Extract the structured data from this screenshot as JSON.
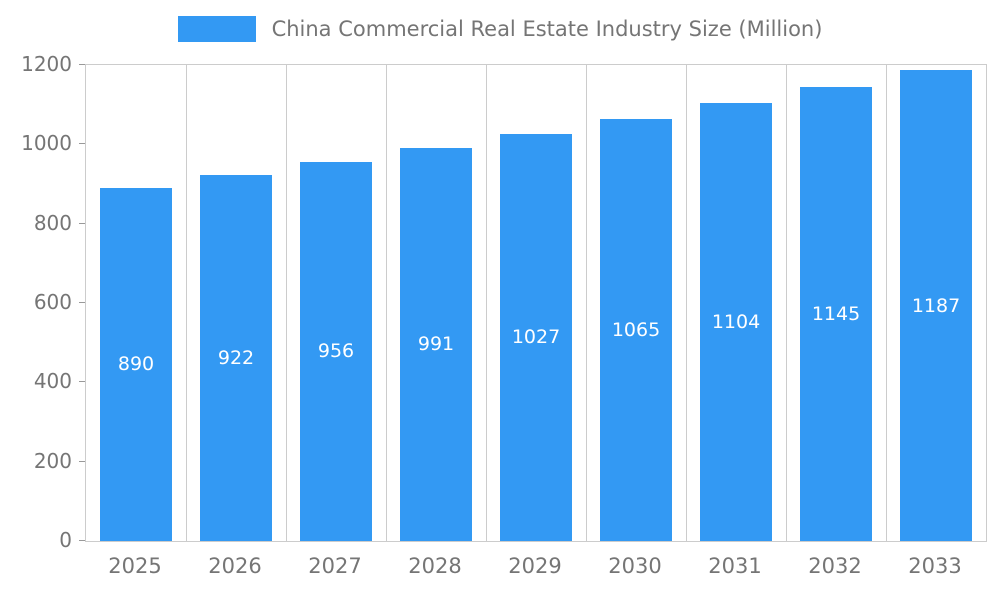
{
  "legend": {
    "title": "China Commercial Real Estate Industry Size (Million)"
  },
  "colors": {
    "bar": "#3399f3",
    "grid": "#cccccc",
    "axis_text": "#757575",
    "bar_label_text": "#ffffff"
  },
  "chart_data": {
    "type": "bar",
    "title": "China Commercial Real Estate Industry Size (Million)",
    "categories": [
      "2025",
      "2026",
      "2027",
      "2028",
      "2029",
      "2030",
      "2031",
      "2032",
      "2033"
    ],
    "values": [
      890,
      922,
      956,
      991,
      1027,
      1065,
      1104,
      1145,
      1187
    ],
    "xlabel": "",
    "ylabel": "",
    "ylim": [
      0,
      1200
    ],
    "yticks": [
      0,
      200,
      400,
      600,
      800,
      1000,
      1200
    ],
    "grid": "vertical-only",
    "legend_position": "top-center",
    "bar_labels": "inside-center-white"
  }
}
